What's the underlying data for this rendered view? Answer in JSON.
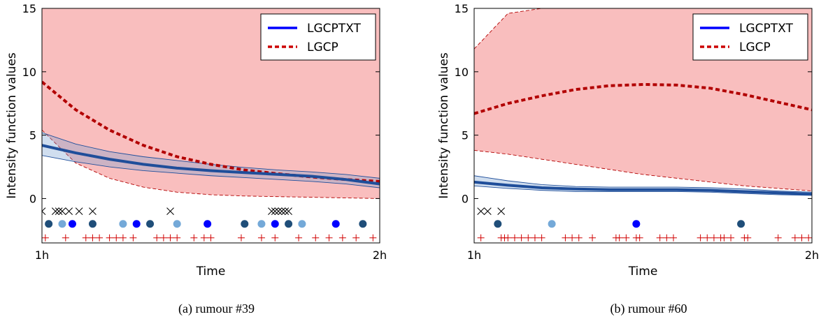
{
  "chart_data": [
    {
      "type": "line",
      "caption": "(a) rumour #39",
      "xlabel": "Time",
      "ylabel": "Intensity function values",
      "x_ticks": [
        "1h",
        "2h"
      ],
      "y_ticks": [
        "0",
        "5",
        "10",
        "15"
      ],
      "xlim": [
        1,
        2
      ],
      "ylim": [
        -3.5,
        15
      ],
      "legend_position": "top-right",
      "series": [
        {
          "name": "LGCPTXT",
          "color": "#1f4e9a",
          "x": [
            1.0,
            1.1,
            1.2,
            1.3,
            1.4,
            1.5,
            1.6,
            1.7,
            1.8,
            1.9,
            2.0
          ],
          "values": [
            4.2,
            3.6,
            3.1,
            2.7,
            2.4,
            2.2,
            2.05,
            1.9,
            1.75,
            1.5,
            1.15
          ],
          "band_lower": [
            3.4,
            2.9,
            2.5,
            2.2,
            2.0,
            1.8,
            1.65,
            1.5,
            1.35,
            1.15,
            0.85
          ],
          "band_upper": [
            5.2,
            4.3,
            3.7,
            3.3,
            3.0,
            2.7,
            2.45,
            2.25,
            2.1,
            1.9,
            1.6
          ]
        },
        {
          "name": "LGCP",
          "color": "#b20000",
          "x": [
            1.0,
            1.1,
            1.2,
            1.3,
            1.4,
            1.5,
            1.6,
            1.7,
            1.8,
            1.9,
            2.0
          ],
          "values": [
            9.2,
            7.0,
            5.4,
            4.2,
            3.3,
            2.7,
            2.25,
            1.95,
            1.7,
            1.5,
            1.35
          ],
          "band_lower": [
            5.4,
            2.8,
            1.6,
            0.9,
            0.5,
            0.3,
            0.2,
            0.15,
            0.1,
            0.05,
            0.0
          ],
          "band_upper": [
            15,
            15,
            15,
            15,
            15,
            15,
            15,
            15,
            15,
            15,
            15
          ]
        }
      ],
      "events": {
        "x_marks": [
          1.0,
          1.04,
          1.05,
          1.06,
          1.08,
          1.11,
          1.15,
          1.38,
          1.68,
          1.69,
          1.7,
          1.71,
          1.72,
          1.73
        ],
        "dots": [
          {
            "x": 1.02,
            "color": "#1f4e79"
          },
          {
            "x": 1.06,
            "color": "#74a9d8"
          },
          {
            "x": 1.09,
            "color": "#0000ff"
          },
          {
            "x": 1.15,
            "color": "#1f4e79"
          },
          {
            "x": 1.24,
            "color": "#74a9d8"
          },
          {
            "x": 1.28,
            "color": "#0000ff"
          },
          {
            "x": 1.32,
            "color": "#1f4e79"
          },
          {
            "x": 1.4,
            "color": "#74a9d8"
          },
          {
            "x": 1.49,
            "color": "#0000ff"
          },
          {
            "x": 1.6,
            "color": "#1f4e79"
          },
          {
            "x": 1.65,
            "color": "#74a9d8"
          },
          {
            "x": 1.69,
            "color": "#0000ff"
          },
          {
            "x": 1.73,
            "color": "#1f4e79"
          },
          {
            "x": 1.77,
            "color": "#74a9d8"
          },
          {
            "x": 1.87,
            "color": "#0000ff"
          },
          {
            "x": 1.95,
            "color": "#1f4e79"
          }
        ],
        "plus_marks": [
          1.01,
          1.07,
          1.13,
          1.15,
          1.17,
          1.2,
          1.22,
          1.24,
          1.27,
          1.34,
          1.36,
          1.38,
          1.4,
          1.45,
          1.48,
          1.5,
          1.59,
          1.65,
          1.69,
          1.76,
          1.81,
          1.85,
          1.89,
          1.93,
          1.98
        ]
      }
    },
    {
      "type": "line",
      "caption": "(b)  rumour #60",
      "xlabel": "Time",
      "ylabel": "Intensity function values",
      "x_ticks": [
        "1h",
        "2h"
      ],
      "y_ticks": [
        "0",
        "5",
        "10",
        "15"
      ],
      "xlim": [
        1,
        2
      ],
      "ylim": [
        -3.5,
        15
      ],
      "legend_position": "top-right",
      "series": [
        {
          "name": "LGCPTXT",
          "color": "#1f4e9a",
          "x": [
            1.0,
            1.1,
            1.2,
            1.3,
            1.4,
            1.5,
            1.6,
            1.7,
            1.8,
            1.9,
            2.0
          ],
          "values": [
            1.3,
            1.05,
            0.85,
            0.75,
            0.7,
            0.7,
            0.7,
            0.65,
            0.55,
            0.45,
            0.35
          ],
          "band_lower": [
            1.0,
            0.8,
            0.65,
            0.55,
            0.55,
            0.55,
            0.55,
            0.5,
            0.4,
            0.3,
            0.25
          ],
          "band_upper": [
            1.8,
            1.4,
            1.1,
            0.95,
            0.9,
            0.9,
            0.9,
            0.85,
            0.75,
            0.6,
            0.5
          ]
        },
        {
          "name": "LGCP",
          "color": "#b20000",
          "x": [
            1.0,
            1.1,
            1.2,
            1.3,
            1.4,
            1.5,
            1.6,
            1.7,
            1.8,
            1.9,
            2.0
          ],
          "values": [
            6.7,
            7.5,
            8.1,
            8.6,
            8.9,
            9.0,
            8.95,
            8.7,
            8.2,
            7.6,
            7.0
          ],
          "band_lower": [
            3.8,
            3.5,
            3.1,
            2.7,
            2.3,
            1.9,
            1.6,
            1.3,
            1.0,
            0.8,
            0.6
          ],
          "band_upper": [
            11.8,
            14.6,
            15,
            15,
            15,
            15,
            15,
            15,
            15,
            15,
            15
          ]
        }
      ],
      "events": {
        "x_marks": [
          1.02,
          1.04,
          1.08
        ],
        "dots": [
          {
            "x": 1.07,
            "color": "#1f4e79"
          },
          {
            "x": 1.23,
            "color": "#74a9d8"
          },
          {
            "x": 1.48,
            "color": "#0000ff"
          },
          {
            "x": 1.79,
            "color": "#1f4e79"
          }
        ],
        "plus_marks": [
          1.02,
          1.08,
          1.09,
          1.1,
          1.12,
          1.14,
          1.16,
          1.18,
          1.2,
          1.27,
          1.29,
          1.31,
          1.35,
          1.42,
          1.43,
          1.45,
          1.48,
          1.49,
          1.55,
          1.57,
          1.59,
          1.67,
          1.69,
          1.71,
          1.73,
          1.74,
          1.76,
          1.8,
          1.81,
          1.9,
          1.95,
          1.97,
          1.99
        ]
      }
    }
  ]
}
